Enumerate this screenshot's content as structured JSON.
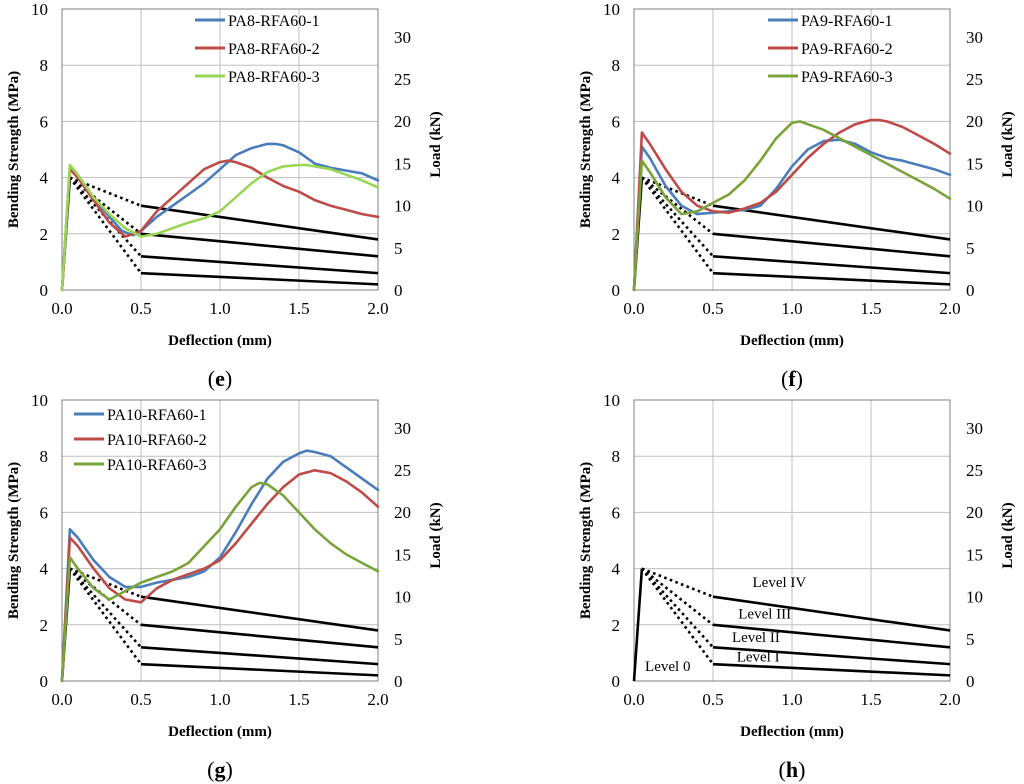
{
  "chart_data": [
    {
      "panel": "e",
      "type": "line",
      "xlabel": "Deflection (mm)",
      "ylabel": "Bending Strength (MPa)",
      "y2label": "Load (kN)",
      "xlim": [
        0,
        2.0
      ],
      "xticks": [
        "0.0",
        "0.5",
        "1.0",
        "1.5",
        "2.0"
      ],
      "ylim": [
        0,
        10
      ],
      "yticks": [
        "0",
        "2",
        "4",
        "6",
        "8",
        "10"
      ],
      "y2lim": [
        0,
        33.3
      ],
      "y2ticks": [
        "0",
        "5",
        "10",
        "15",
        "20",
        "25",
        "30"
      ],
      "grid": true,
      "legend_position": "top-center",
      "series": [
        {
          "name": "PA8-RFA60-1",
          "color": "#4a7ebb",
          "x": [
            0,
            0.05,
            0.1,
            0.2,
            0.3,
            0.38,
            0.45,
            0.5,
            0.6,
            0.7,
            0.8,
            0.9,
            1.0,
            1.1,
            1.2,
            1.3,
            1.35,
            1.4,
            1.5,
            1.6,
            1.7,
            1.8,
            1.9,
            2.0
          ],
          "y": [
            0,
            4.4,
            4.0,
            3.3,
            2.6,
            2.1,
            1.95,
            2.1,
            2.6,
            3.0,
            3.4,
            3.8,
            4.3,
            4.8,
            5.05,
            5.2,
            5.2,
            5.15,
            4.9,
            4.5,
            4.35,
            4.25,
            4.15,
            3.9
          ]
        },
        {
          "name": "PA8-RFA60-2",
          "color": "#be4b48",
          "x": [
            0,
            0.05,
            0.1,
            0.2,
            0.3,
            0.4,
            0.5,
            0.6,
            0.7,
            0.8,
            0.9,
            1.0,
            1.05,
            1.1,
            1.2,
            1.3,
            1.4,
            1.5,
            1.6,
            1.7,
            1.8,
            1.9,
            2.0
          ],
          "y": [
            0,
            4.3,
            4.0,
            3.2,
            2.4,
            1.9,
            2.1,
            2.8,
            3.3,
            3.8,
            4.3,
            4.55,
            4.6,
            4.55,
            4.35,
            4.0,
            3.7,
            3.5,
            3.2,
            3.0,
            2.85,
            2.7,
            2.6
          ]
        },
        {
          "name": "PA8-RFA60-3",
          "color": "#98d654",
          "x": [
            0,
            0.05,
            0.1,
            0.2,
            0.3,
            0.4,
            0.5,
            0.6,
            0.7,
            0.8,
            0.9,
            1.0,
            1.1,
            1.2,
            1.3,
            1.4,
            1.5,
            1.55,
            1.6,
            1.7,
            1.8,
            1.9,
            2.0
          ],
          "y": [
            0,
            4.45,
            4.1,
            3.3,
            2.7,
            2.2,
            1.9,
            2.0,
            2.2,
            2.4,
            2.55,
            2.8,
            3.3,
            3.8,
            4.2,
            4.4,
            4.45,
            4.45,
            4.4,
            4.3,
            4.1,
            3.9,
            3.65
          ]
        }
      ]
    },
    {
      "panel": "f",
      "type": "line",
      "xlabel": "Deflection (mm)",
      "ylabel": "Bending Strength (MPa)",
      "y2label": "Load (kN)",
      "xlim": [
        0,
        2.0
      ],
      "xticks": [
        "0.0",
        "0.5",
        "1.0",
        "1.5",
        "2.0"
      ],
      "ylim": [
        0,
        10
      ],
      "yticks": [
        "0",
        "2",
        "4",
        "6",
        "8",
        "10"
      ],
      "y2lim": [
        0,
        33.3
      ],
      "y2ticks": [
        "0",
        "5",
        "10",
        "15",
        "20",
        "25",
        "30"
      ],
      "grid": true,
      "legend_position": "top-center",
      "series": [
        {
          "name": "PA9-RFA60-1",
          "color": "#4a7ebb",
          "x": [
            0,
            0.05,
            0.1,
            0.2,
            0.3,
            0.4,
            0.5,
            0.6,
            0.7,
            0.8,
            0.9,
            1.0,
            1.1,
            1.2,
            1.3,
            1.4,
            1.5,
            1.6,
            1.7,
            1.8,
            1.9,
            2.0
          ],
          "y": [
            0,
            5.1,
            4.7,
            3.7,
            3.0,
            2.7,
            2.75,
            2.8,
            2.85,
            3.0,
            3.6,
            4.4,
            5.0,
            5.3,
            5.35,
            5.2,
            4.9,
            4.7,
            4.6,
            4.45,
            4.3,
            4.1
          ]
        },
        {
          "name": "PA9-RFA60-2",
          "color": "#be4b48",
          "x": [
            0,
            0.05,
            0.1,
            0.2,
            0.3,
            0.4,
            0.5,
            0.6,
            0.7,
            0.8,
            0.9,
            1.0,
            1.1,
            1.2,
            1.3,
            1.4,
            1.5,
            1.55,
            1.6,
            1.7,
            1.8,
            1.9,
            2.0
          ],
          "y": [
            0,
            5.6,
            5.2,
            4.3,
            3.5,
            3.0,
            2.8,
            2.75,
            2.9,
            3.1,
            3.5,
            4.1,
            4.7,
            5.2,
            5.6,
            5.9,
            6.05,
            6.05,
            6.0,
            5.8,
            5.5,
            5.2,
            4.85
          ]
        },
        {
          "name": "PA9-RFA60-3",
          "color": "#7aa33a",
          "x": [
            0,
            0.05,
            0.1,
            0.2,
            0.3,
            0.4,
            0.5,
            0.6,
            0.7,
            0.8,
            0.9,
            1.0,
            1.05,
            1.1,
            1.2,
            1.3,
            1.4,
            1.5,
            1.6,
            1.7,
            1.8,
            1.9,
            2.0
          ],
          "y": [
            0,
            4.6,
            4.2,
            3.3,
            2.7,
            2.8,
            3.1,
            3.4,
            3.9,
            4.6,
            5.4,
            5.95,
            6.0,
            5.9,
            5.7,
            5.4,
            5.1,
            4.8,
            4.5,
            4.2,
            3.9,
            3.6,
            3.25
          ]
        }
      ]
    },
    {
      "panel": "g",
      "type": "line",
      "xlabel": "Deflection (mm)",
      "ylabel": "Bending Strength (MPa)",
      "y2label": "Load (kN)",
      "xlim": [
        0,
        2.0
      ],
      "xticks": [
        "0.0",
        "0.5",
        "1.0",
        "1.5",
        "2.0"
      ],
      "ylim": [
        0,
        10
      ],
      "yticks": [
        "0",
        "2",
        "4",
        "6",
        "8",
        "10"
      ],
      "y2lim": [
        0,
        33.3
      ],
      "y2ticks": [
        "0",
        "5",
        "10",
        "15",
        "20",
        "25",
        "30"
      ],
      "grid": true,
      "legend_position": "top-left",
      "series": [
        {
          "name": "PA10-RFA60-1",
          "color": "#4a7ebb",
          "x": [
            0,
            0.05,
            0.1,
            0.2,
            0.3,
            0.4,
            0.5,
            0.6,
            0.7,
            0.8,
            0.9,
            1.0,
            1.1,
            1.2,
            1.3,
            1.4,
            1.5,
            1.55,
            1.6,
            1.7,
            1.8,
            1.9,
            2.0
          ],
          "y": [
            0,
            5.4,
            5.1,
            4.3,
            3.7,
            3.35,
            3.35,
            3.5,
            3.6,
            3.7,
            3.9,
            4.4,
            5.3,
            6.3,
            7.2,
            7.8,
            8.1,
            8.2,
            8.15,
            8.0,
            7.6,
            7.2,
            6.8
          ]
        },
        {
          "name": "PA10-RFA60-2",
          "color": "#be4b48",
          "x": [
            0,
            0.05,
            0.1,
            0.2,
            0.3,
            0.4,
            0.5,
            0.6,
            0.7,
            0.8,
            0.9,
            1.0,
            1.1,
            1.2,
            1.3,
            1.4,
            1.5,
            1.6,
            1.7,
            1.8,
            1.9,
            2.0
          ],
          "y": [
            0,
            5.1,
            4.8,
            4.0,
            3.3,
            2.9,
            2.8,
            3.3,
            3.6,
            3.8,
            4.0,
            4.3,
            4.9,
            5.6,
            6.3,
            6.9,
            7.35,
            7.5,
            7.4,
            7.1,
            6.7,
            6.2
          ]
        },
        {
          "name": "PA10-RFA60-3",
          "color": "#7aa33a",
          "x": [
            0,
            0.05,
            0.1,
            0.2,
            0.3,
            0.4,
            0.5,
            0.6,
            0.7,
            0.8,
            0.9,
            1.0,
            1.1,
            1.2,
            1.25,
            1.3,
            1.4,
            1.5,
            1.6,
            1.7,
            1.8,
            1.9,
            2.0
          ],
          "y": [
            0,
            4.4,
            4.0,
            3.3,
            2.9,
            3.2,
            3.5,
            3.7,
            3.9,
            4.2,
            4.8,
            5.4,
            6.2,
            6.9,
            7.05,
            7.0,
            6.6,
            6.0,
            5.4,
            4.9,
            4.5,
            4.2,
            3.9
          ]
        }
      ]
    },
    {
      "panel": "h",
      "type": "line",
      "xlabel": "Deflection (mm)",
      "ylabel": "Bending Strength (MPa)",
      "y2label": "Load (kN)",
      "xlim": [
        0,
        2.0
      ],
      "xticks": [
        "0.0",
        "0.5",
        "1.0",
        "1.5",
        "2.0"
      ],
      "ylim": [
        0,
        10
      ],
      "yticks": [
        "0",
        "2",
        "4",
        "6",
        "8",
        "10"
      ],
      "y2lim": [
        0,
        33.3
      ],
      "y2ticks": [
        "0",
        "5",
        "10",
        "15",
        "20",
        "25",
        "30"
      ],
      "grid": true,
      "level_labels": [
        "Level IV",
        "Level III",
        "Level II",
        "Level I",
        "Level 0"
      ],
      "series": []
    }
  ],
  "reference_levels": {
    "peak": [
      0.05,
      4.0
    ],
    "levels": [
      {
        "name": "Level IV",
        "y_at_0_5": 3.0,
        "y_at_2_0": 1.8
      },
      {
        "name": "Level III",
        "y_at_0_5": 2.0,
        "y_at_2_0": 1.2
      },
      {
        "name": "Level II",
        "y_at_0_5": 1.2,
        "y_at_2_0": 0.6
      },
      {
        "name": "Level I",
        "y_at_0_5": 0.6,
        "y_at_2_0": 0.2
      }
    ]
  }
}
